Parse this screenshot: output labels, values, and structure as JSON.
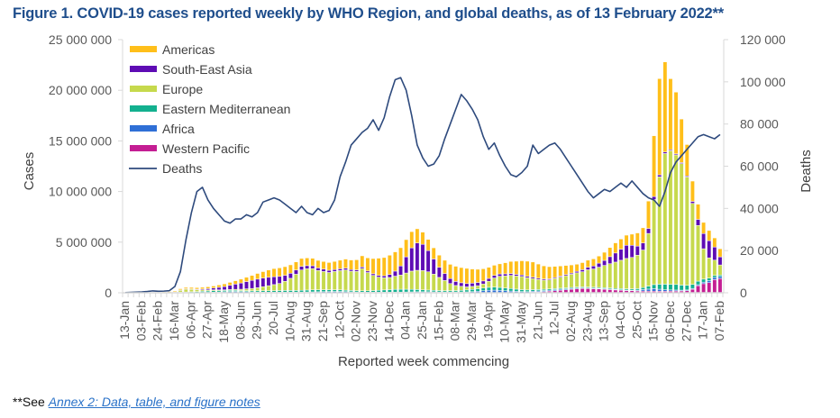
{
  "chart_data": {
    "type": "bar",
    "subtype": "stacked bar with line on secondary axis",
    "title": "Figure 1. COVID-19 cases reported weekly by WHO Region, and global deaths, as of 13 February 2022**",
    "xlabel": "Reported week commencing",
    "ylabel": "Cases",
    "y2label": "Deaths",
    "ylim": [
      0,
      25000000
    ],
    "y2lim": [
      0,
      120000
    ],
    "yticks": [
      "0",
      "5 000 000",
      "10 000 000",
      "15 000 000",
      "20 000 000",
      "25 000 000"
    ],
    "y2ticks": [
      "0",
      "20 000",
      "40 000",
      "60 000",
      "80 000",
      "100 000",
      "120 000"
    ],
    "xtick_labels": [
      "13-Jan",
      "03-Feb",
      "24-Feb",
      "16-Mar",
      "06-Apr",
      "27-Apr",
      "18-May",
      "08-Jun",
      "29-Jun",
      "20-Jul",
      "10-Aug",
      "31-Aug",
      "21-Sep",
      "12-Oct",
      "02-Nov",
      "23-Nov",
      "14-Dec",
      "04-Jan",
      "25-Jan",
      "15-Feb",
      "08-Mar",
      "29-Mar",
      "19-Apr",
      "10-May",
      "31-May",
      "21-Jun",
      "12-Jul",
      "02-Aug",
      "23-Aug",
      "13-Sep",
      "04-Oct",
      "25-Oct",
      "15-Nov",
      "06-Dec",
      "27-Dec",
      "17-Jan",
      "07-Feb"
    ],
    "xtick_every_n_weeks": 3,
    "grid": false,
    "legend_position": "top-left",
    "legend": [
      {
        "name": "Americas",
        "color": "#ffbf1a"
      },
      {
        "name": "South-East Asia",
        "color": "#5e0cb4"
      },
      {
        "name": "Europe",
        "color": "#c6d94d"
      },
      {
        "name": "Eastern Mediterranean",
        "color": "#13b08f"
      },
      {
        "name": "Africa",
        "color": "#2f6fd6"
      },
      {
        "name": "Western Pacific",
        "color": "#c41e93"
      },
      {
        "name": "Deaths",
        "color": "#2e4a7d",
        "kind": "line"
      }
    ],
    "stack_order_bottom_to_top": [
      "Western Pacific",
      "Africa",
      "Eastern Mediterranean",
      "Europe",
      "South-East Asia",
      "Americas"
    ],
    "series": [
      {
        "name": "Western Pacific",
        "values": [
          0,
          0,
          0,
          0,
          0,
          0,
          0,
          0,
          0,
          0,
          0,
          0,
          0,
          0,
          0,
          0,
          0,
          0,
          0,
          0,
          0,
          0,
          0,
          0,
          0,
          0,
          0,
          0,
          0,
          0,
          0,
          0,
          0,
          0,
          0,
          0,
          0,
          0,
          0,
          0,
          0,
          0,
          0,
          0,
          0,
          0,
          0,
          0,
          0,
          0,
          0,
          0,
          0,
          0,
          0,
          0,
          0,
          0,
          0,
          0,
          0,
          0,
          0,
          0,
          0,
          0,
          0,
          0,
          0,
          0,
          0,
          0,
          0,
          0,
          50000,
          80000,
          120000,
          160000,
          200000,
          250000,
          300000,
          350000,
          400000,
          420000,
          420000,
          400000,
          380000,
          350000,
          320000,
          280000,
          250000,
          220000,
          200000,
          180000,
          170000,
          160000,
          160000,
          150000,
          150000,
          160000,
          170000,
          180000,
          200000,
          350000,
          700000,
          900000,
          1000000,
          1300000,
          1400000
        ]
      },
      {
        "name": "Africa",
        "values": [
          0,
          0,
          0,
          0,
          0,
          0,
          0,
          0,
          0,
          0,
          10000,
          10000,
          20000,
          20000,
          30000,
          40000,
          60000,
          80000,
          100000,
          120000,
          130000,
          120000,
          110000,
          90000,
          80000,
          70000,
          60000,
          60000,
          60000,
          60000,
          60000,
          60000,
          70000,
          80000,
          90000,
          100000,
          110000,
          120000,
          130000,
          130000,
          110000,
          90000,
          80000,
          70000,
          60000,
          60000,
          60000,
          60000,
          60000,
          70000,
          70000,
          80000,
          90000,
          100000,
          100000,
          100000,
          90000,
          80000,
          80000,
          80000,
          80000,
          80000,
          90000,
          110000,
          150000,
          200000,
          250000,
          260000,
          240000,
          200000,
          170000,
          140000,
          120000,
          110000,
          100000,
          100000,
          100000,
          100000,
          100000,
          100000,
          90000,
          80000,
          70000,
          60000,
          50000,
          50000,
          50000,
          50000,
          50000,
          50000,
          50000,
          50000,
          60000,
          80000,
          150000,
          200000,
          250000,
          200000,
          150000,
          120000,
          100000,
          80000,
          80000,
          80000,
          100000,
          150000,
          200000,
          220000,
          200000
        ]
      },
      {
        "name": "Eastern Mediterranean",
        "values": [
          0,
          0,
          0,
          0,
          0,
          10000,
          20000,
          30000,
          40000,
          50000,
          60000,
          70000,
          80000,
          100000,
          120000,
          140000,
          150000,
          140000,
          130000,
          120000,
          110000,
          100000,
          100000,
          110000,
          120000,
          130000,
          140000,
          150000,
          160000,
          170000,
          170000,
          170000,
          180000,
          190000,
          200000,
          200000,
          190000,
          180000,
          170000,
          160000,
          150000,
          140000,
          130000,
          130000,
          140000,
          160000,
          190000,
          220000,
          250000,
          270000,
          280000,
          270000,
          250000,
          220000,
          190000,
          170000,
          150000,
          140000,
          130000,
          130000,
          140000,
          160000,
          190000,
          220000,
          250000,
          270000,
          290000,
          300000,
          290000,
          270000,
          250000,
          220000,
          190000,
          170000,
          160000,
          140000,
          130000,
          120000,
          110000,
          100000,
          100000,
          100000,
          100000,
          100000,
          100000,
          100000,
          100000,
          100000,
          100000,
          100000,
          110000,
          120000,
          130000,
          150000,
          200000,
          300000,
          400000,
          500000,
          550000,
          560000,
          550000,
          500000,
          460000,
          400000,
          350000,
          300000,
          250000,
          200000,
          150000
        ]
      },
      {
        "name": "Europe",
        "values": [
          0,
          0,
          0,
          0,
          0,
          0,
          0,
          0,
          0,
          10000,
          200000,
          300000,
          250000,
          180000,
          130000,
          100000,
          80000,
          70000,
          60000,
          80000,
          100000,
          130000,
          180000,
          230000,
          300000,
          400000,
          500000,
          600000,
          700000,
          900000,
          1200000,
          1600000,
          2000000,
          2100000,
          2100000,
          1900000,
          1800000,
          1700000,
          1800000,
          1900000,
          2000000,
          1900000,
          1900000,
          2200000,
          1800000,
          1500000,
          1300000,
          1200000,
          1200000,
          1300000,
          1400000,
          1600000,
          1800000,
          1900000,
          1900000,
          1800000,
          1600000,
          1300000,
          1000000,
          700000,
          500000,
          400000,
          300000,
          300000,
          300000,
          400000,
          600000,
          900000,
          1100000,
          1200000,
          1300000,
          1300000,
          1300000,
          1200000,
          1100000,
          1000000,
          900000,
          900000,
          1000000,
          1100000,
          1200000,
          1300000,
          1400000,
          1500000,
          1700000,
          1800000,
          2000000,
          2200000,
          2400000,
          2600000,
          2800000,
          3000000,
          3100000,
          3300000,
          3700000,
          5200000,
          8400000,
          10600000,
          12900000,
          13200000,
          12800000,
          12000000,
          10700000,
          8000000,
          5500000,
          3000000,
          2000000,
          1500000,
          1000000
        ]
      },
      {
        "name": "South-East Asia",
        "values": [
          0,
          0,
          0,
          0,
          0,
          0,
          0,
          0,
          0,
          0,
          10000,
          20000,
          40000,
          60000,
          90000,
          130000,
          180000,
          250000,
          330000,
          420000,
          520000,
          620000,
          720000,
          800000,
          850000,
          850000,
          830000,
          780000,
          700000,
          600000,
          500000,
          420000,
          360000,
          310000,
          280000,
          260000,
          240000,
          220000,
          200000,
          180000,
          170000,
          160000,
          150000,
          150000,
          150000,
          160000,
          170000,
          200000,
          300000,
          500000,
          900000,
          1600000,
          2300000,
          2700000,
          2600000,
          2100000,
          1500000,
          1000000,
          700000,
          500000,
          400000,
          350000,
          330000,
          320000,
          320000,
          300000,
          280000,
          260000,
          230000,
          200000,
          180000,
          160000,
          150000,
          140000,
          130000,
          120000,
          110000,
          100000,
          100000,
          100000,
          110000,
          120000,
          150000,
          200000,
          250000,
          300000,
          400000,
          500000,
          700000,
          900000,
          1100000,
          1300000,
          1200000,
          900000,
          700000,
          500000,
          300000,
          200000,
          150000,
          100000,
          100000,
          100000,
          100000,
          200000,
          600000,
          1500000,
          1700000,
          1300000,
          800000
        ]
      },
      {
        "name": "Americas",
        "values": [
          0,
          0,
          0,
          0,
          10000,
          20000,
          40000,
          60000,
          80000,
          100000,
          120000,
          130000,
          140000,
          150000,
          170000,
          180000,
          200000,
          230000,
          260000,
          290000,
          330000,
          380000,
          420000,
          480000,
          560000,
          640000,
          720000,
          800000,
          840000,
          850000,
          830000,
          800000,
          780000,
          760000,
          740000,
          740000,
          750000,
          770000,
          800000,
          850000,
          900000,
          950000,
          1000000,
          1100000,
          1300000,
          1500000,
          1700000,
          1800000,
          1900000,
          1900000,
          1800000,
          1700000,
          1600000,
          1400000,
          1200000,
          1100000,
          1100000,
          1200000,
          1300000,
          1400000,
          1500000,
          1500000,
          1500000,
          1400000,
          1300000,
          1200000,
          1100000,
          1000000,
          1000000,
          1100000,
          1200000,
          1300000,
          1400000,
          1500000,
          1500000,
          1400000,
          1300000,
          1200000,
          1100000,
          1000000,
          900000,
          800000,
          700000,
          700000,
          700000,
          700000,
          700000,
          800000,
          900000,
          1000000,
          1000000,
          1000000,
          1100000,
          1300000,
          1500000,
          2700000,
          6000000,
          9500000,
          8900000,
          7000000,
          6100000,
          4300000,
          3100000,
          2000000,
          1500000,
          1100000,
          1000000,
          900000,
          800000
        ]
      },
      {
        "name": "Deaths",
        "axis": "secondary",
        "values": [
          100,
          200,
          300,
          400,
          600,
          900,
          700,
          800,
          1000,
          3000,
          10000,
          25000,
          38000,
          48000,
          50000,
          44000,
          40000,
          37000,
          34000,
          33000,
          35000,
          35000,
          37000,
          36000,
          38000,
          43000,
          44000,
          45000,
          44000,
          42000,
          40000,
          38000,
          41000,
          38000,
          37000,
          40000,
          38000,
          39000,
          44000,
          55000,
          62000,
          70000,
          73000,
          76000,
          78000,
          82000,
          77000,
          83000,
          93000,
          101000,
          102000,
          96000,
          84000,
          70000,
          64000,
          60000,
          61000,
          65000,
          73000,
          80000,
          87000,
          94000,
          91000,
          87000,
          82000,
          74000,
          68000,
          71000,
          65000,
          60000,
          56000,
          55000,
          57000,
          60000,
          70000,
          66000,
          68000,
          70000,
          71000,
          68000,
          64000,
          60000,
          56000,
          52000,
          48000,
          45000,
          47000,
          49000,
          48000,
          50000,
          52000,
          50000,
          53000,
          50000,
          47000,
          45000,
          44000,
          41000,
          48000,
          57000,
          62000,
          65000,
          68000,
          71000,
          74000,
          75000,
          74000,
          73000,
          75000
        ]
      }
    ]
  },
  "footnote": {
    "prefix": "**See ",
    "link_text": "Annex 2: Data, table, and figure notes"
  }
}
